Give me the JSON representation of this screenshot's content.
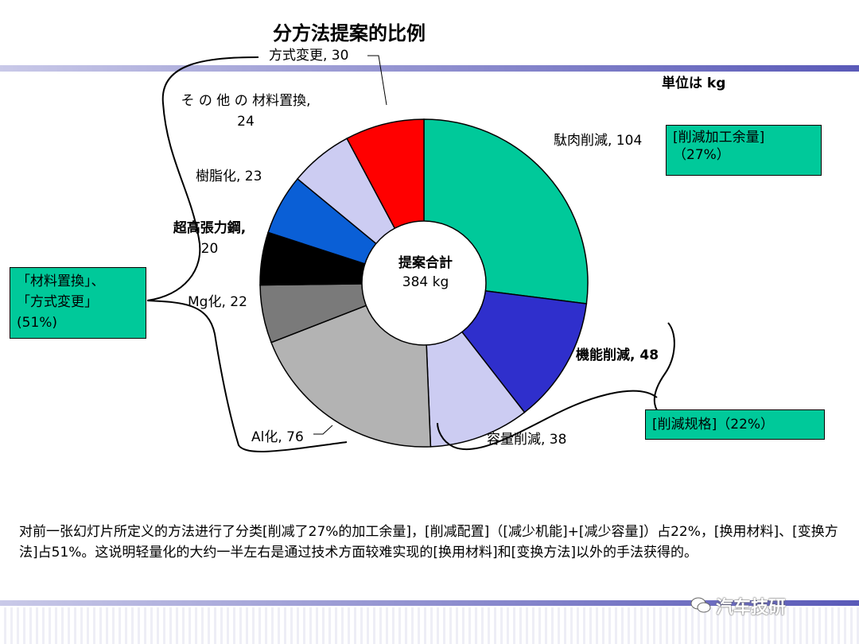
{
  "chart_data": {
    "type": "pie",
    "title": "分方法提案的比例",
    "unit_note": "単位は kg",
    "center_title": "提案合計",
    "center_total": "384 kg",
    "slices": [
      {
        "label": "駄肉削減",
        "value": 104,
        "label_text": "駄肉削減, 104",
        "color": "#00c99a"
      },
      {
        "label": "機能削減",
        "value": 48,
        "label_text": "機能削減, 48",
        "color": "#2f2fcc"
      },
      {
        "label": "容量削減",
        "value": 38,
        "label_text": "容量削減, 38",
        "color": "#ccccf2"
      },
      {
        "label": "Al化",
        "value": 76,
        "label_text": "Al化, 76",
        "color": "#b3b3b3"
      },
      {
        "label": "Mg化",
        "value": 22,
        "label_text": "Mg化, 22",
        "color": "#7a7a7a"
      },
      {
        "label": "超高張力鋼",
        "value": 20,
        "label_text_1": "超高張力鋼,",
        "label_text_2": "20",
        "color": "#000000"
      },
      {
        "label": "樹脂化",
        "value": 23,
        "label_text": "樹脂化, 23",
        "color": "#0a5fd6"
      },
      {
        "label": "その他の材料置換",
        "value": 24,
        "label_text_1": "そ の 他 の 材料置換,",
        "label_text_2": "24",
        "color": "#ccccf2"
      },
      {
        "label": "方式変更",
        "value": 30,
        "label_text": "方式変更, 30",
        "color": "#ff0000"
      }
    ]
  },
  "groups": {
    "box1_line1": "[削減加工余量]",
    "box1_line2": "（27%）",
    "box2": "[削減规格]（22%）",
    "box3_line1": "「材料置換」、",
    "box3_line2": "「方式変更」",
    "box3_line3": "(51%)"
  },
  "description": "对前一张幻灯片所定义的方法进行了分类[削减了27%的加工余量]，[削减配置]（[减少机能]+[减少容量]）占22%，[换用材料]、[变换方法]占51%。这说明轻量化的大约一半左右是通过技术方面较难实现的[换用材料]和[变换方法]以外的手法获得的。",
  "watermark": "汽车技研"
}
